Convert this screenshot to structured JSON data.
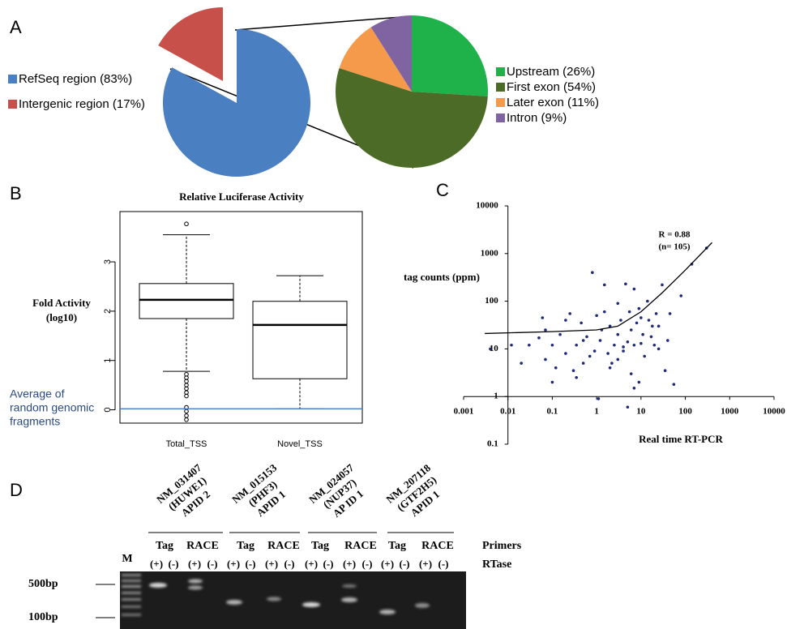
{
  "chart_data": [
    {
      "type": "pie",
      "panel": "A",
      "categories": [
        "RefSeq region (83%)",
        "Intergenic region (17%)"
      ],
      "values": [
        83,
        17
      ],
      "colors": [
        "#4a7fc1",
        "#c8504a"
      ]
    },
    {
      "type": "pie",
      "categories": [
        "Upstream (26%)",
        "First exon (54%)",
        "Later exon (11%)",
        "Intron (9%)"
      ],
      "values": [
        26,
        54,
        11,
        9
      ],
      "colors": [
        "#1fb24b",
        "#4c6b27",
        "#f59a4b",
        "#8064a2"
      ]
    },
    {
      "type": "box",
      "panel": "B",
      "title": "Relative Luciferase Activity",
      "ylabel": [
        "Fold Activity",
        "(log10)"
      ],
      "categories": [
        "Total_TSS",
        "Novel_TSS"
      ],
      "boxes": [
        {
          "whisker_low": 0.78,
          "q1": 1.85,
          "median": 2.23,
          "q3": 2.56,
          "whisker_high": 3.55,
          "outliers": [
            3.77,
            0.72,
            0.65,
            0.58,
            0.5,
            0.43,
            0.35,
            0.28,
            0.05,
            -0.03,
            -0.12,
            -0.2
          ]
        },
        {
          "whisker_low": 0.02,
          "q1": 0.63,
          "median": 1.72,
          "q3": 2.2,
          "whisker_high": 2.72,
          "outliers": []
        }
      ],
      "ylim": [
        -0.27,
        4.02
      ],
      "yticks": [
        0,
        1,
        2,
        3
      ],
      "reference_line": {
        "value": 0.02,
        "color": "#4a7fc1",
        "label": [
          "Average of",
          "random genomic",
          "fragments"
        ],
        "label_color": "#2a4a80"
      }
    },
    {
      "type": "scatter",
      "panel": "C",
      "xlabel": "Real time RT-PCR",
      "ylabel": "tag counts (ppm)",
      "annotation": [
        "R = 0.88",
        "(n= 105)"
      ],
      "xscale": "log",
      "yscale": "log",
      "xlim": [
        0.001,
        10000
      ],
      "ylim": [
        0.1,
        10000
      ],
      "xticks": [
        0.001,
        0.01,
        0.1,
        1,
        10,
        100,
        1000,
        10000
      ],
      "yticks": [
        0.1,
        1,
        10,
        100,
        1000,
        10000
      ],
      "series": [
        {
          "color": "#1f2a7a",
          "x": [
            0.004,
            0.012,
            0.02,
            0.03,
            0.05,
            0.07,
            0.07,
            0.1,
            0.12,
            0.1,
            0.15,
            0.2,
            0.25,
            0.3,
            0.35,
            0.45,
            0.5,
            0.6,
            0.7,
            0.8,
            0.9,
            1,
            1.2,
            1.5,
            1.5,
            1.8,
            2,
            2.5,
            3,
            3,
            3.5,
            4,
            4.5,
            5,
            5,
            5.5,
            6,
            7,
            7,
            8,
            9,
            10,
            11,
            12,
            14,
            15,
            18,
            20,
            22,
            25,
            30,
            35,
            40,
            45,
            55,
            80,
            140,
            300,
            0.35,
            2,
            1.1,
            3,
            6,
            9,
            25,
            0.06,
            0.2,
            17,
            4,
            1.3,
            2.2,
            0.5,
            10,
            7
          ],
          "y": [
            10,
            12,
            5,
            12,
            17,
            25,
            6,
            12,
            4,
            2,
            20,
            8,
            55,
            3.5,
            12,
            35,
            5,
            18,
            7,
            400,
            9,
            50,
            15,
            220,
            60,
            8,
            30,
            12,
            90,
            20,
            40,
            11,
            230,
            0.6,
            14,
            60,
            25,
            180,
            12,
            35,
            70,
            13,
            20,
            7,
            100,
            40,
            30,
            12,
            55,
            10,
            220,
            3.5,
            15,
            55,
            1.8,
            130,
            600,
            1300,
            2.5,
            4,
            0.9,
            6,
            3,
            2,
            30,
            45,
            40,
            18,
            9,
            25,
            5,
            15,
            45,
            1.5
          ]
        }
      ],
      "fit": {
        "color": "#000000",
        "x": [
          0.003,
          0.1,
          1,
          3,
          10,
          30,
          100,
          400
        ],
        "y": [
          21,
          23,
          25,
          30,
          60,
          150,
          450,
          1700
        ]
      }
    }
  ],
  "gel": {
    "panel": "D",
    "genes": [
      [
        "NM_031407",
        "(HUWE1)",
        "APID 2"
      ],
      [
        "NM_015153",
        "(PHF3)",
        "APID 1"
      ],
      [
        "NM_024057",
        "(NUP37)",
        "AP ID 1"
      ],
      [
        "NM_207118",
        "(GTF2H5)",
        "APID 1"
      ]
    ],
    "primer_row": [
      "Tag",
      "RACE",
      "Tag",
      "RACE",
      "Tag",
      "RACE",
      "Tag",
      "RACE"
    ],
    "primers_label": "Primers",
    "rtase_row": [
      "(+)",
      "(-)",
      "(+)",
      "(-)",
      "(+)",
      "(-)",
      "(+)",
      "(-)",
      "(+)",
      "(-)",
      "(+)",
      "(-)",
      "(+)",
      "(-)",
      "(+)",
      "(-)"
    ],
    "rtase_label": "RTase",
    "marker": "M",
    "sizes": [
      "500bp",
      "100bp"
    ]
  }
}
